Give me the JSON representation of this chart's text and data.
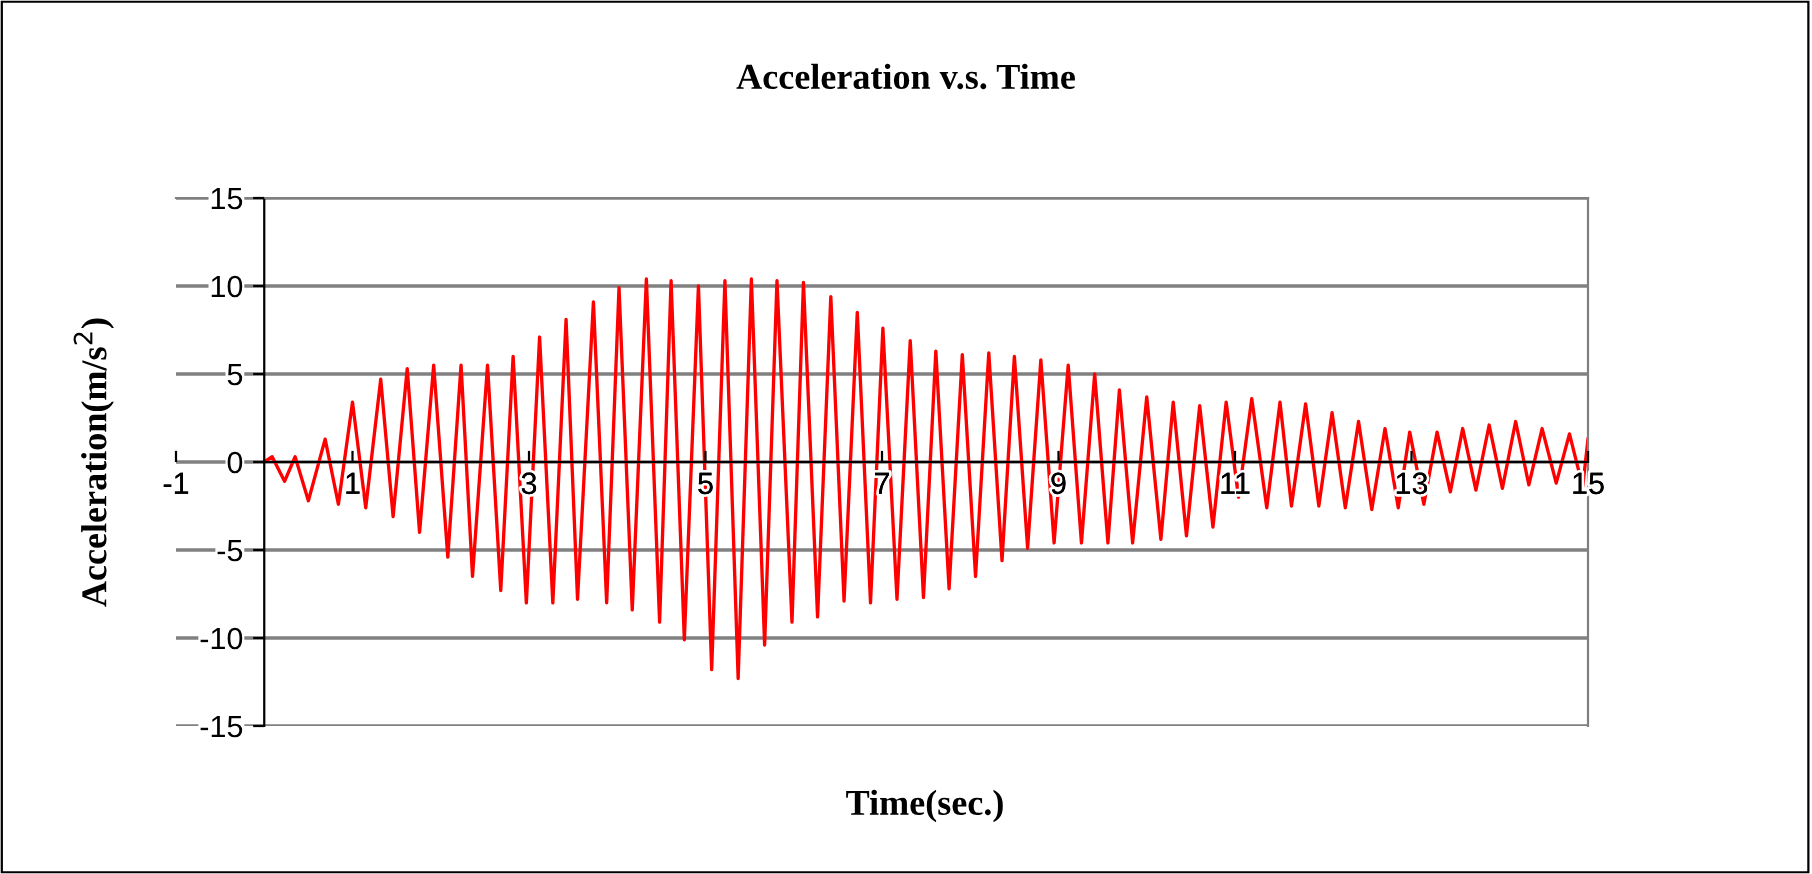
{
  "chart_data": {
    "type": "line",
    "title": "Acceleration v.s. Time",
    "xlabel": "Time(sec.)",
    "ylabel": "Acceleration(m/s$^{2}$)",
    "x": [
      0,
      0.09,
      0.23,
      0.35,
      0.5,
      0.69,
      0.84,
      1.0,
      1.15,
      1.32,
      1.46,
      1.62,
      1.76,
      1.92,
      2.08,
      2.23,
      2.36,
      2.53,
      2.68,
      2.82,
      2.97,
      3.12,
      3.27,
      3.42,
      3.55,
      3.73,
      3.88,
      4.02,
      4.17,
      4.33,
      4.48,
      4.61,
      4.76,
      4.92,
      5.07,
      5.22,
      5.37,
      5.52,
      5.67,
      5.81,
      5.98,
      6.11,
      6.27,
      6.42,
      6.57,
      6.72,
      6.87,
      7.01,
      7.17,
      7.32,
      7.47,
      7.61,
      7.76,
      7.91,
      8.06,
      8.21,
      8.36,
      8.5,
      8.65,
      8.8,
      8.95,
      9.11,
      9.26,
      9.41,
      9.56,
      9.69,
      9.84,
      10.0,
      10.16,
      10.3,
      10.45,
      10.6,
      10.75,
      10.9,
      11.04,
      11.19,
      11.36,
      11.51,
      11.64,
      11.8,
      11.95,
      12.1,
      12.25,
      12.4,
      12.55,
      12.7,
      12.85,
      12.98,
      13.14,
      13.29,
      13.44,
      13.58,
      13.73,
      13.88,
      14.03,
      14.18,
      14.33,
      14.48,
      14.64,
      14.79,
      14.94,
      15.0
    ],
    "series": [
      {
        "color": "#ff0000",
        "values": [
          0,
          0.3,
          -1.1,
          0.3,
          -2.2,
          1.3,
          -2.4,
          3.4,
          -2.6,
          4.7,
          -3.1,
          5.3,
          -4.0,
          5.5,
          -5.4,
          5.5,
          -6.5,
          5.5,
          -7.3,
          6.0,
          -8.0,
          7.1,
          -8.0,
          8.1,
          -7.8,
          9.1,
          -8.0,
          9.9,
          -8.4,
          10.4,
          -9.1,
          10.3,
          -10.1,
          10.0,
          -11.8,
          10.3,
          -12.3,
          10.4,
          -10.4,
          10.3,
          -9.1,
          10.2,
          -8.8,
          9.4,
          -7.9,
          8.5,
          -8.0,
          7.6,
          -7.8,
          6.9,
          -7.7,
          6.3,
          -7.2,
          6.1,
          -6.5,
          6.2,
          -5.6,
          6.0,
          -4.9,
          5.8,
          -4.6,
          5.5,
          -4.6,
          5.0,
          -4.6,
          4.1,
          -4.6,
          3.7,
          -4.4,
          3.4,
          -4.2,
          3.2,
          -3.7,
          3.4,
          -2.0,
          3.6,
          -2.6,
          3.4,
          -2.5,
          3.3,
          -2.5,
          2.8,
          -2.6,
          2.3,
          -2.7,
          1.9,
          -2.6,
          1.7,
          -2.4,
          1.7,
          -1.7,
          1.9,
          -1.6,
          2.1,
          -1.5,
          2.3,
          -1.3,
          1.9,
          -1.2,
          1.6,
          -1.4,
          1.3
        ]
      }
    ],
    "xlim": [
      -1,
      15
    ],
    "xticks": [
      -1,
      1,
      3,
      5,
      7,
      9,
      11,
      13,
      15
    ],
    "ylim": [
      -15,
      15
    ],
    "yticks": [
      -15,
      -10,
      -5,
      0,
      5,
      10,
      15
    ],
    "grid": "y"
  }
}
